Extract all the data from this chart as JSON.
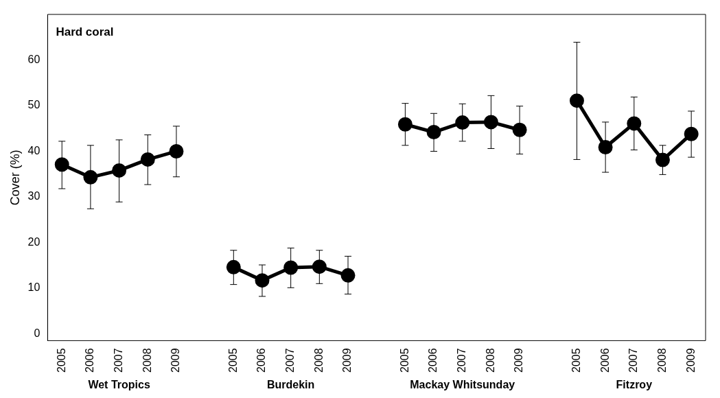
{
  "chart_data": {
    "type": "line",
    "title": "Hard coral",
    "ylabel": "Cover (%)",
    "categories": [
      "2005",
      "2006",
      "2007",
      "2008",
      "2009",
      null,
      "2005",
      "2006",
      "2007",
      "2008",
      "2009",
      null,
      "2005",
      "2006",
      "2007",
      "2008",
      "2009",
      null,
      "2005",
      "2006",
      "2007",
      "2008",
      "2009"
    ],
    "series": [
      {
        "color": "#000000",
        "values": [
          37.1,
          34.3,
          35.8,
          38.2,
          40.0,
          null,
          14.6,
          11.7,
          14.5,
          14.7,
          12.8,
          null,
          45.9,
          44.2,
          46.3,
          46.4,
          44.7,
          null,
          51.1,
          40.9,
          46.1,
          38.1,
          43.8
        ],
        "errors": [
          [
            31.8,
            42.2
          ],
          [
            27.4,
            41.3
          ],
          [
            28.9,
            42.5
          ],
          [
            32.7,
            43.6
          ],
          [
            34.4,
            45.5
          ],
          null,
          [
            10.8,
            18.3
          ],
          [
            8.2,
            15.1
          ],
          [
            10.1,
            18.8
          ],
          [
            11.0,
            18.3
          ],
          [
            8.7,
            17.0
          ],
          null,
          [
            41.3,
            50.5
          ],
          [
            40.0,
            48.3
          ],
          [
            42.2,
            50.4
          ],
          [
            40.6,
            52.2
          ],
          [
            39.4,
            49.9
          ],
          null,
          [
            38.2,
            63.9
          ],
          [
            35.4,
            46.4
          ],
          [
            40.3,
            51.9
          ],
          [
            34.9,
            41.3
          ],
          [
            38.7,
            48.8
          ]
        ]
      }
    ],
    "annotations": [
      "Wet Tropics",
      "Burdekin",
      "Mackay Whitsunday",
      "Fitzroy"
    ],
    "ylim": [
      -1.5,
      70
    ],
    "yticks": [
      0,
      10,
      20,
      30,
      40,
      50,
      60
    ],
    "grid": false,
    "legend": false,
    "marker": "circle",
    "line_style": "solid"
  }
}
